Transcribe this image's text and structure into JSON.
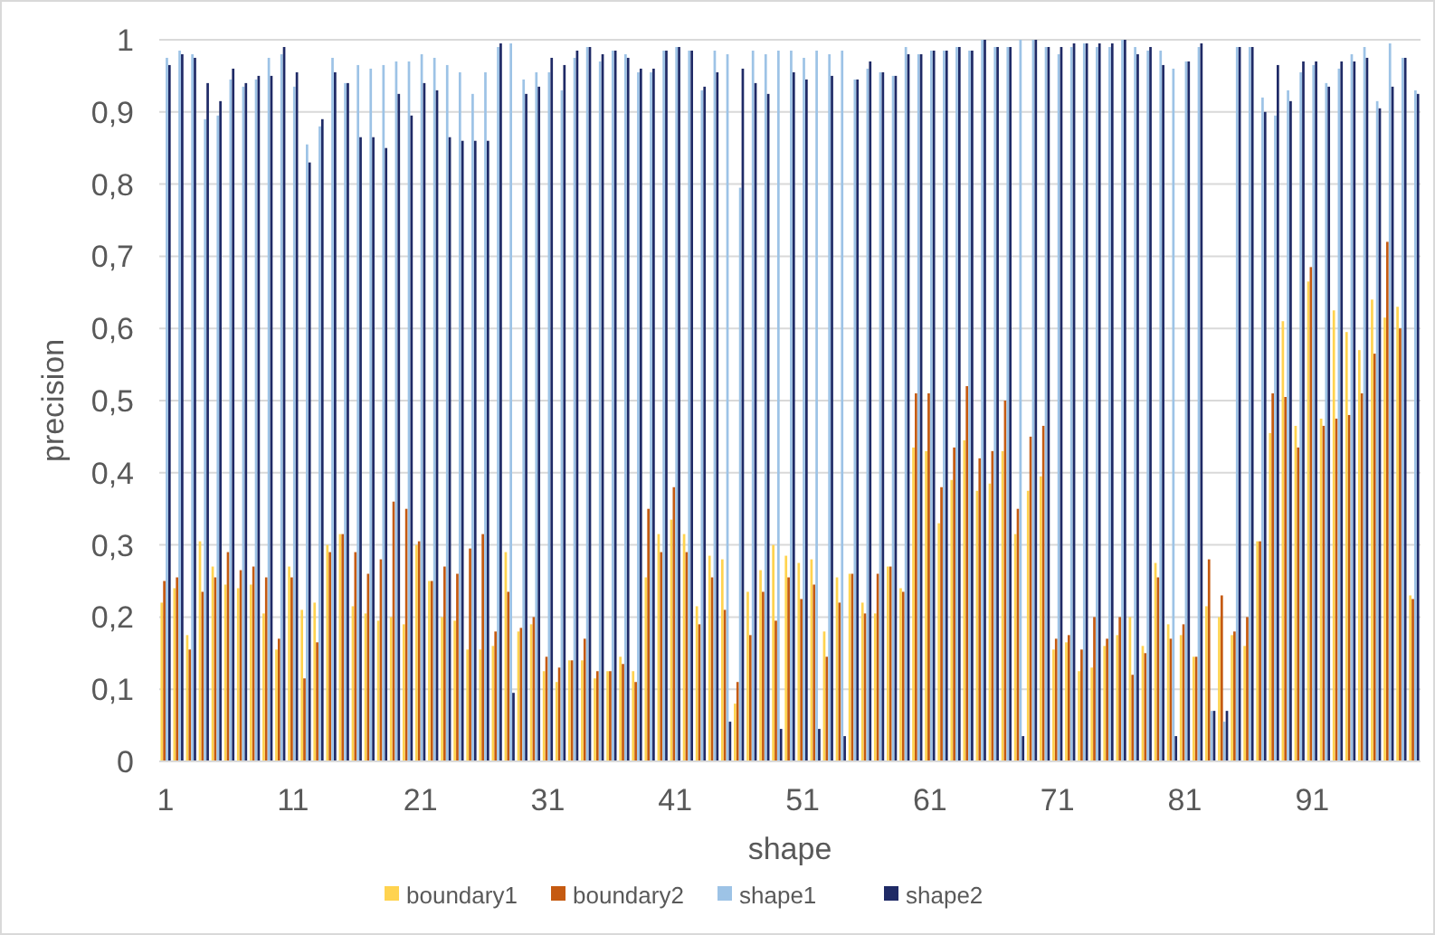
{
  "chart_data": {
    "type": "bar",
    "xlabel": "shape",
    "ylabel": "precision",
    "categories": [
      "1",
      null,
      null,
      null,
      null,
      null,
      null,
      null,
      null,
      null,
      "11",
      null,
      null,
      null,
      null,
      null,
      null,
      null,
      null,
      null,
      "21",
      null,
      null,
      null,
      null,
      null,
      null,
      null,
      null,
      null,
      "31",
      null,
      null,
      null,
      null,
      null,
      null,
      null,
      null,
      null,
      "41",
      null,
      null,
      null,
      null,
      null,
      null,
      null,
      null,
      null,
      "51",
      null,
      null,
      null,
      null,
      null,
      null,
      null,
      null,
      null,
      "61",
      null,
      null,
      null,
      null,
      null,
      null,
      null,
      null,
      null,
      "71",
      null,
      null,
      null,
      null,
      null,
      null,
      null,
      null,
      null,
      "81",
      null,
      null,
      null,
      null,
      null,
      null,
      null,
      null,
      null,
      "91",
      null,
      null,
      null,
      null,
      null,
      null,
      null,
      null
    ],
    "ylim": [
      0,
      1
    ],
    "yticks": [
      0,
      {
        "value": 0.1,
        "label": "0,1"
      },
      {
        "value": 0.2,
        "label": "0,2"
      },
      {
        "value": 0.3,
        "label": "0,3"
      },
      {
        "value": 0.4,
        "label": "0,4"
      },
      {
        "value": 0.5,
        "label": "0,5"
      },
      {
        "value": 0.6,
        "label": "0,6"
      },
      {
        "value": 0.7,
        "label": "0,7"
      },
      {
        "value": 0.8,
        "label": "0,8"
      },
      {
        "value": 0.9,
        "label": "0,9"
      },
      1
    ],
    "grid": "y",
    "legend": "bottom",
    "series": [
      {
        "name": "boundary1",
        "color": "#ffd34f",
        "values": [
          0.22,
          0.24,
          0.175,
          0.305,
          0.27,
          0.245,
          0.24,
          0.245,
          0.205,
          0.155,
          0.27,
          0.21,
          0.22,
          0.3,
          0.315,
          0.215,
          0.205,
          0.195,
          0.2,
          0.19,
          0.3,
          0.25,
          0.2,
          0.195,
          0.155,
          0.155,
          0.16,
          0.29,
          0.18,
          0.19,
          0.125,
          0.11,
          0.14,
          0.14,
          0.115,
          0.125,
          0.145,
          0.125,
          0.255,
          0.315,
          0.335,
          0.315,
          0.215,
          0.285,
          0.28,
          0.08,
          0.235,
          0.265,
          0.3,
          0.285,
          0.275,
          0.28,
          0.18,
          0.255,
          0.26,
          0.22,
          0.205,
          0.27,
          0.24,
          0.435,
          0.43,
          0.33,
          0.39,
          0.445,
          0.375,
          0.385,
          0.43,
          0.315,
          0.375,
          0.395,
          0.155,
          0.165,
          0.125,
          0.13,
          0.16,
          0.175,
          0.2,
          0.16,
          0.275,
          0.19,
          0.175,
          0.145,
          0.215,
          0.2,
          0.175,
          0.16,
          0.305,
          0.455,
          0.61,
          0.465,
          0.665,
          0.475,
          0.625,
          0.595,
          0.57,
          0.64,
          0.615,
          0.63,
          0.23
        ]
      },
      {
        "name": "boundary2",
        "color": "#c55a11",
        "values": [
          0.25,
          0.255,
          0.155,
          0.235,
          0.255,
          0.29,
          0.265,
          0.27,
          0.255,
          0.17,
          0.255,
          0.115,
          0.165,
          0.29,
          0.315,
          0.29,
          0.26,
          0.28,
          0.36,
          0.35,
          0.305,
          0.25,
          0.27,
          0.26,
          0.295,
          0.315,
          0.18,
          0.235,
          0.185,
          0.2,
          0.145,
          0.13,
          0.14,
          0.17,
          0.125,
          0.125,
          0.135,
          0.11,
          0.35,
          0.29,
          0.38,
          0.29,
          0.19,
          0.255,
          0.21,
          0.11,
          0.175,
          0.235,
          0.195,
          0.255,
          0.225,
          0.245,
          0.145,
          0.22,
          0.26,
          0.205,
          0.26,
          0.27,
          0.235,
          0.51,
          0.51,
          0.38,
          0.435,
          0.52,
          0.42,
          0.43,
          0.5,
          0.35,
          0.45,
          0.465,
          0.17,
          0.175,
          0.155,
          0.2,
          0.17,
          0.2,
          0.12,
          0.15,
          0.255,
          0.17,
          0.19,
          0.145,
          0.28,
          0.23,
          0.18,
          0.2,
          0.305,
          0.51,
          0.505,
          0.435,
          0.685,
          0.465,
          0.475,
          0.48,
          0.51,
          0.565,
          0.72,
          0.6,
          0.225
        ]
      },
      {
        "name": "shape1",
        "color": "#9dc3e6",
        "values": [
          0.975,
          0.985,
          0.98,
          0.89,
          0.895,
          0.945,
          0.935,
          0.945,
          0.975,
          0.98,
          0.935,
          0.855,
          0.88,
          0.975,
          0.94,
          0.965,
          0.96,
          0.965,
          0.97,
          0.97,
          0.98,
          0.975,
          0.965,
          0.955,
          0.925,
          0.955,
          0.99,
          0.995,
          0.945,
          0.955,
          0.955,
          0.93,
          0.975,
          0.99,
          0.97,
          0.985,
          0.98,
          0.955,
          0.955,
          0.985,
          0.99,
          0.985,
          0.93,
          0.985,
          0.98,
          0.795,
          0.985,
          0.98,
          0.985,
          0.985,
          0.975,
          0.985,
          0.98,
          0.985,
          0.945,
          0.96,
          0.955,
          0.95,
          0.99,
          0.98,
          0.985,
          0.985,
          0.99,
          0.985,
          1,
          0.99,
          0.99,
          1,
          1,
          0.99,
          0.98,
          0.99,
          0.995,
          0.99,
          0.99,
          1,
          0.99,
          0.985,
          0.985,
          0.96,
          0.97,
          0.99,
          0.07,
          0.055,
          0.99,
          0.99,
          0.92,
          0.895,
          0.93,
          0.955,
          0.965,
          0.94,
          0.96,
          0.98,
          0.99,
          0.915,
          0.995,
          0.975,
          0.93
        ]
      },
      {
        "name": "shape2",
        "color": "#1f2a66",
        "values": [
          0.965,
          0.98,
          0.975,
          0.94,
          0.915,
          0.96,
          0.94,
          0.95,
          0.95,
          0.99,
          0.955,
          0.83,
          0.89,
          0.955,
          0.94,
          0.865,
          0.865,
          0.85,
          0.925,
          0.895,
          0.94,
          0.93,
          0.865,
          0.86,
          0.86,
          0.86,
          0.995,
          0.095,
          0.925,
          0.935,
          0.975,
          0.965,
          0.985,
          0.99,
          0.98,
          0.985,
          0.975,
          0.96,
          0.96,
          0.985,
          0.99,
          0.985,
          0.935,
          0.955,
          0.055,
          0.96,
          0.94,
          0.925,
          0.045,
          0.955,
          0.945,
          0.045,
          0.95,
          0.035,
          0.945,
          0.97,
          0.955,
          0.95,
          0.98,
          0.98,
          0.985,
          0.985,
          0.99,
          0.985,
          1,
          0.99,
          0.99,
          0.035,
          1,
          0.99,
          0.99,
          0.995,
          0.995,
          0.995,
          0.995,
          1,
          0.98,
          0.99,
          0.965,
          0.035,
          0.97,
          0.995,
          0.07,
          0.07,
          0.99,
          0.99,
          0.9,
          0.965,
          0.915,
          0.97,
          0.97,
          0.935,
          0.97,
          0.97,
          0.975,
          0.905,
          0.935,
          0.975,
          0.925
        ]
      }
    ]
  }
}
